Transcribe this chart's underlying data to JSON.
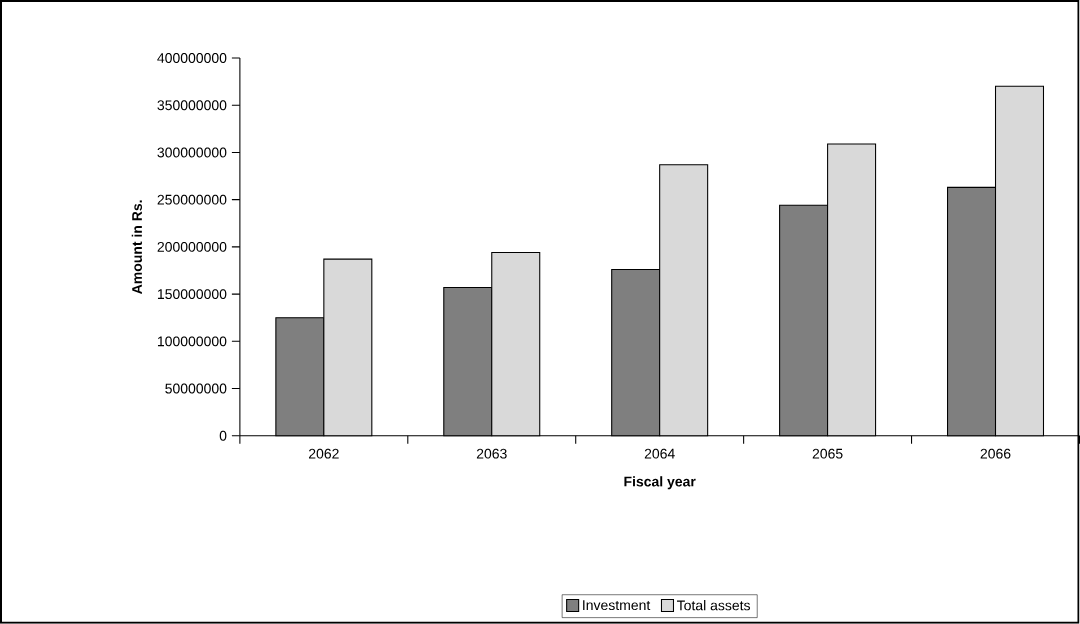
{
  "chart_data": {
    "type": "bar",
    "xlabel": "Fiscal year",
    "ylabel": "Amount in Rs.",
    "categories": [
      "2062",
      "2063",
      "2064",
      "2065",
      "2066"
    ],
    "series": [
      {
        "name": "Investment",
        "color": "#7f7f7f",
        "values": [
          125000000,
          157000000,
          176000000,
          244000000,
          263000000
        ]
      },
      {
        "name": "Total assets",
        "color": "#d9d9d9",
        "values": [
          187000000,
          194000000,
          287000000,
          309000000,
          370000000
        ]
      }
    ],
    "ylim": [
      0,
      400000000
    ],
    "yticks": [
      0,
      50000000,
      100000000,
      150000000,
      200000000,
      250000000,
      300000000,
      350000000,
      400000000
    ],
    "grid": false,
    "legend": "bottom"
  }
}
